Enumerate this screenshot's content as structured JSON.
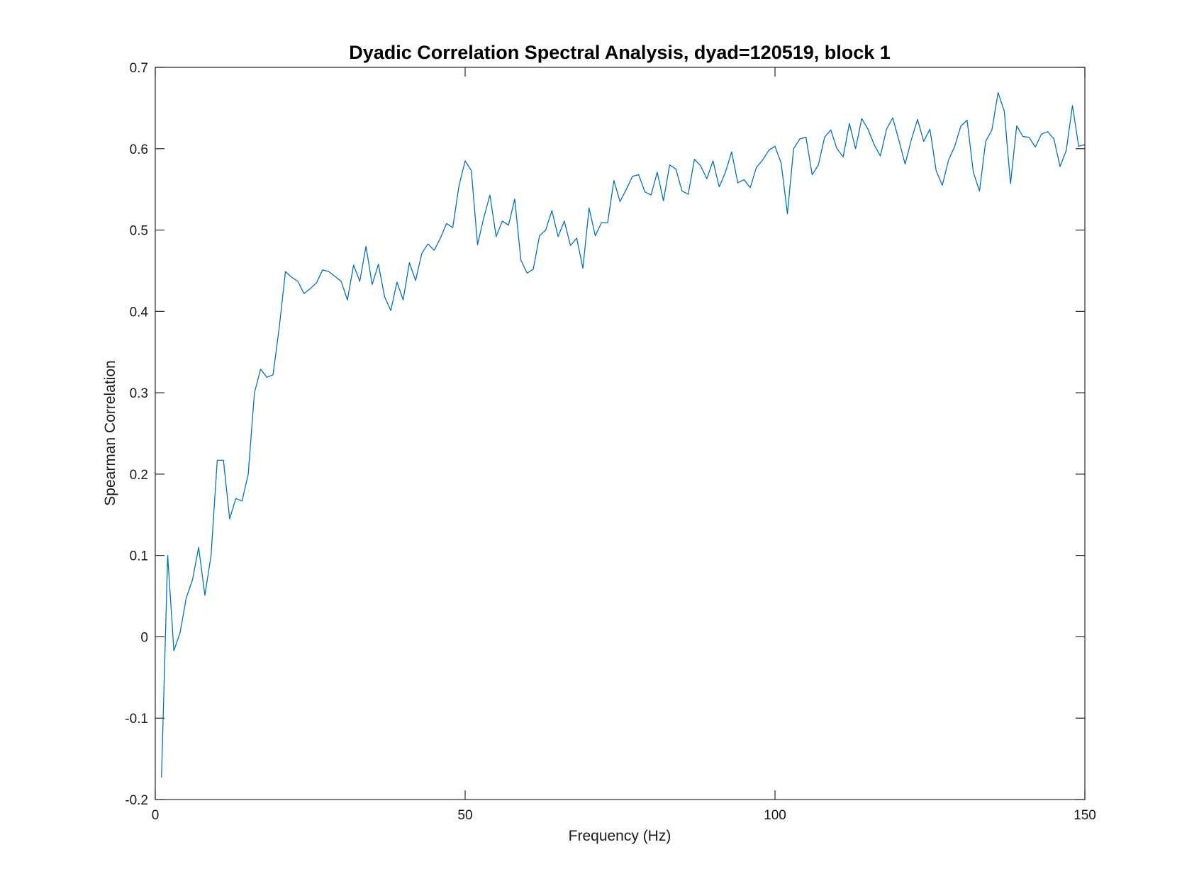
{
  "chart_data": {
    "type": "line",
    "title": "Dyadic Correlation Spectral Analysis, dyad=120519, block 1",
    "xlabel": "Frequency (Hz)",
    "ylabel": "Spearman Correlation",
    "xlim": [
      0,
      150
    ],
    "ylim": [
      -0.2,
      0.7
    ],
    "xticks": [
      0,
      50,
      100,
      150
    ],
    "xtick_labels": [
      "0",
      "50",
      "100",
      "150"
    ],
    "yticks": [
      -0.2,
      -0.1,
      0,
      0.1,
      0.2,
      0.3,
      0.4,
      0.5,
      0.6,
      0.7
    ],
    "ytick_labels": [
      "-0.2",
      "-0.1",
      "0",
      "0.1",
      "0.2",
      "0.3",
      "0.4",
      "0.5",
      "0.6",
      "0.7"
    ],
    "grid": false,
    "line_color": "#0072BD",
    "series": [
      {
        "name": "Spearman correlation",
        "x": [
          1,
          2,
          3,
          4,
          5,
          6,
          7,
          8,
          9,
          10,
          11,
          12,
          13,
          14,
          15,
          16,
          17,
          18,
          19,
          20,
          21,
          22,
          23,
          24,
          25,
          26,
          27,
          28,
          29,
          30,
          31,
          32,
          33,
          34,
          35,
          36,
          37,
          38,
          39,
          40,
          41,
          42,
          43,
          44,
          45,
          46,
          47,
          48,
          49,
          50,
          51,
          52,
          53,
          54,
          55,
          56,
          57,
          58,
          59,
          60,
          61,
          62,
          63,
          64,
          65,
          66,
          67,
          68,
          69,
          70,
          71,
          72,
          73,
          74,
          75,
          76,
          77,
          78,
          79,
          80,
          81,
          82,
          83,
          84,
          85,
          86,
          87,
          88,
          89,
          90,
          91,
          92,
          93,
          94,
          95,
          96,
          97,
          98,
          99,
          100,
          101,
          102,
          103,
          104,
          105,
          106,
          107,
          108,
          109,
          110,
          111,
          112,
          113,
          114,
          115,
          116,
          117,
          118,
          119,
          120,
          121,
          122,
          123,
          124,
          125,
          126,
          127,
          128,
          129,
          130,
          131,
          132,
          133,
          134,
          135,
          136,
          137,
          138,
          139,
          140,
          141,
          142,
          143,
          144,
          145,
          146,
          147,
          148,
          149,
          150
        ],
        "values": [
          -0.173,
          0.1,
          -0.017,
          0.005,
          0.048,
          0.07,
          0.11,
          0.051,
          0.1,
          0.217,
          0.217,
          0.145,
          0.17,
          0.167,
          0.2,
          0.3,
          0.329,
          0.319,
          0.322,
          0.38,
          0.449,
          0.442,
          0.437,
          0.422,
          0.428,
          0.435,
          0.451,
          0.449,
          0.443,
          0.437,
          0.414,
          0.457,
          0.437,
          0.48,
          0.433,
          0.458,
          0.418,
          0.401,
          0.436,
          0.414,
          0.46,
          0.438,
          0.471,
          0.483,
          0.475,
          0.49,
          0.508,
          0.503,
          0.554,
          0.585,
          0.573,
          0.482,
          0.515,
          0.543,
          0.492,
          0.511,
          0.506,
          0.538,
          0.463,
          0.447,
          0.452,
          0.493,
          0.5,
          0.524,
          0.492,
          0.511,
          0.481,
          0.49,
          0.453,
          0.527,
          0.493,
          0.509,
          0.509,
          0.561,
          0.535,
          0.55,
          0.566,
          0.568,
          0.547,
          0.543,
          0.571,
          0.536,
          0.58,
          0.575,
          0.548,
          0.544,
          0.587,
          0.579,
          0.563,
          0.585,
          0.553,
          0.571,
          0.596,
          0.558,
          0.562,
          0.552,
          0.577,
          0.586,
          0.598,
          0.603,
          0.582,
          0.52,
          0.6,
          0.612,
          0.614,
          0.568,
          0.58,
          0.614,
          0.623,
          0.6,
          0.59,
          0.631,
          0.6,
          0.637,
          0.624,
          0.605,
          0.591,
          0.624,
          0.638,
          0.61,
          0.581,
          0.611,
          0.636,
          0.609,
          0.624,
          0.573,
          0.555,
          0.586,
          0.603,
          0.628,
          0.635,
          0.571,
          0.548,
          0.609,
          0.623,
          0.669,
          0.646,
          0.557,
          0.628,
          0.615,
          0.614,
          0.602,
          0.618,
          0.621,
          0.612,
          0.578,
          0.598,
          0.653,
          0.603,
          0.605
        ]
      }
    ]
  }
}
